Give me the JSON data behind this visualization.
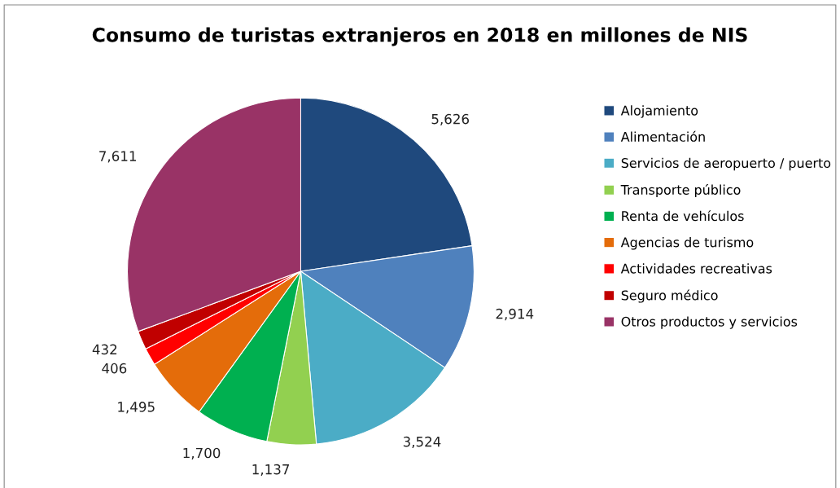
{
  "chart_data": {
    "type": "pie",
    "title": "Consumo de turistas extranjeros en 2018 en millones de NIS",
    "categories": [
      "Alojamiento",
      "Alimentación",
      "Servicios de aeropuerto / puerto",
      "Transporte público",
      "Renta de vehículos",
      "Agencias de turismo",
      "Actividades recreativas",
      "Seguro médico",
      "Otros productos y servicios"
    ],
    "values": [
      5626,
      2914,
      3524,
      1137,
      1700,
      1495,
      406,
      432,
      7611
    ],
    "value_labels": [
      "5,626",
      "2,914",
      "3,524",
      "1,137",
      "1,700",
      "1,495",
      "406",
      "432",
      "7,611"
    ],
    "colors": [
      "#1f497d",
      "#4f81bd",
      "#4bacc6",
      "#92d050",
      "#00b050",
      "#e46c0a",
      "#ff0000",
      "#c00000",
      "#993366"
    ],
    "legend": "right"
  }
}
